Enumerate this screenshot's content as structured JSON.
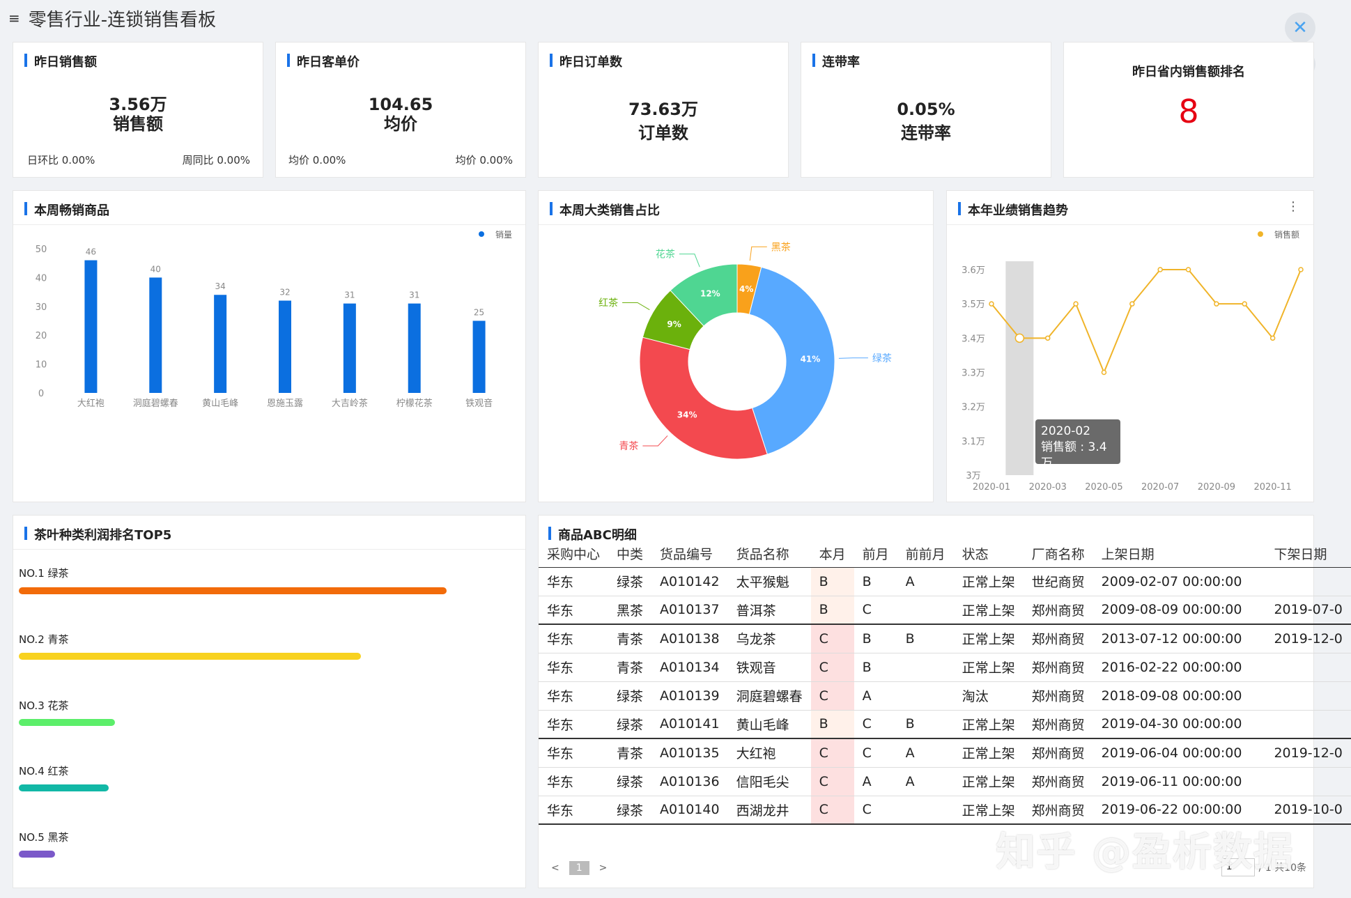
{
  "page": {
    "title": "零售行业-连锁销售看板"
  },
  "kpis": [
    {
      "title": "昨日销售额",
      "main": "3.56万",
      "sub": "销售额",
      "left": "日环比 0.00%",
      "right": "周同比 0.00%"
    },
    {
      "title": "昨日客单价",
      "main": "104.65",
      "sub": "均价",
      "left": "均价 0.00%",
      "right": "均价 0.00%"
    },
    {
      "title": "昨日订单数",
      "main": "73.63万",
      "sub": "订单数"
    },
    {
      "title": "连带率",
      "main": "0.05%",
      "sub": "连带率"
    }
  ],
  "rank": {
    "title": "昨日省内销售额排名",
    "value": "8"
  },
  "bestsellers": {
    "title": "本周畅销商品",
    "legend": "销量",
    "chart_data": {
      "type": "bar",
      "categories": [
        "大红袍",
        "洞庭碧螺春",
        "黄山毛峰",
        "恩施玉露",
        "大吉岭茶",
        "柠檬花茶",
        "铁观音"
      ],
      "values": [
        46,
        40,
        34,
        32,
        31,
        31,
        25
      ],
      "yticks": [
        "0",
        "10",
        "20",
        "30",
        "40",
        "50"
      ],
      "ylim": [
        0,
        50
      ],
      "color": "#0b6fe0"
    }
  },
  "category_share": {
    "title": "本周大类销售占比",
    "chart_data": {
      "type": "pie",
      "slices": [
        {
          "name": "黑茶",
          "label": "4%",
          "value": 4,
          "color": "#f9a11b"
        },
        {
          "name": "绿茶",
          "label": "41%",
          "value": 41,
          "color": "#58a9ff"
        },
        {
          "name": "青茶",
          "label": "34%",
          "value": 34,
          "color": "#f3494f"
        },
        {
          "name": "红茶",
          "label": "9%",
          "value": 9,
          "color": "#6bb10c"
        },
        {
          "name": "花茶",
          "label": "12%",
          "value": 12,
          "color": "#4fd692"
        }
      ]
    }
  },
  "trend": {
    "title": "本年业绩销售趋势",
    "legend": "销售额",
    "more_icon": "⋮",
    "tooltip": {
      "period": "2020-02",
      "text": "销售额 : 3.4万"
    },
    "chart_data": {
      "type": "line",
      "x": [
        "2020-01",
        "2020-02",
        "2020-03",
        "2020-04",
        "2020-05",
        "2020-06",
        "2020-07",
        "2020-08",
        "2020-09",
        "2020-10",
        "2020-11",
        "2020-12"
      ],
      "xticks": [
        "2020-01",
        "2020-03",
        "2020-05",
        "2020-07",
        "2020-09",
        "2020-11"
      ],
      "y": [
        3.5,
        3.4,
        3.4,
        3.5,
        3.3,
        3.5,
        3.6,
        3.6,
        3.5,
        3.5,
        3.4,
        3.6
      ],
      "yticks": [
        "3万",
        "3.1万",
        "3.2万",
        "3.3万",
        "3.4万",
        "3.5万",
        "3.6万"
      ],
      "ylim": [
        3.0,
        3.6
      ],
      "unit": "万",
      "highlight_index": 1,
      "color": "#f0b429"
    }
  },
  "top5": {
    "title": "茶叶种类利润排名TOP5",
    "items": [
      {
        "label": "NO.1 绿茶",
        "value": 100,
        "color": "#f26b0a"
      },
      {
        "label": "NO.2 青茶",
        "value": 80,
        "color": "#f8d21f"
      },
      {
        "label": "NO.3 花茶",
        "value": 22.5,
        "color": "#5cee6a"
      },
      {
        "label": "NO.4 红茶",
        "value": 21,
        "color": "#12b8a6"
      },
      {
        "label": "NO.5 黑茶",
        "value": 8.5,
        "color": "#7b59c9"
      }
    ]
  },
  "abc": {
    "title": "商品ABC明细",
    "columns": [
      "采购中心",
      "中类",
      "货品编号",
      "货品名称",
      "本月",
      "前月",
      "前前月",
      "状态",
      "厂商名称",
      "上架日期",
      "下架日期"
    ],
    "rows": [
      [
        "华东",
        "绿茶",
        "A010142",
        "太平猴魁",
        "B",
        "B",
        "A",
        "正常上架",
        "世纪商贸",
        "2009-02-07 00:00:00",
        ""
      ],
      [
        "华东",
        "黑茶",
        "A010137",
        "普洱茶",
        "B",
        "C",
        "",
        "正常上架",
        "郑州商贸",
        "2009-08-09 00:00:00",
        "2019-07-0"
      ],
      [
        "华东",
        "青茶",
        "A010138",
        "乌龙茶",
        "C",
        "B",
        "B",
        "正常上架",
        "郑州商贸",
        "2013-07-12 00:00:00",
        "2019-12-0"
      ],
      [
        "华东",
        "青茶",
        "A010134",
        "铁观音",
        "C",
        "B",
        "",
        "正常上架",
        "郑州商贸",
        "2016-02-22 00:00:00",
        ""
      ],
      [
        "华东",
        "绿茶",
        "A010139",
        "洞庭碧螺春",
        "C",
        "A",
        "",
        "淘汰",
        "郑州商贸",
        "2018-09-08 00:00:00",
        ""
      ],
      [
        "华东",
        "绿茶",
        "A010141",
        "黄山毛峰",
        "B",
        "C",
        "B",
        "正常上架",
        "郑州商贸",
        "2019-04-30 00:00:00",
        ""
      ],
      [
        "华东",
        "青茶",
        "A010135",
        "大红袍",
        "C",
        "C",
        "A",
        "正常上架",
        "郑州商贸",
        "2019-06-04 00:00:00",
        "2019-12-0"
      ],
      [
        "华东",
        "绿茶",
        "A010136",
        "信阳毛尖",
        "C",
        "A",
        "A",
        "正常上架",
        "郑州商贸",
        "2019-06-11 00:00:00",
        ""
      ],
      [
        "华东",
        "绿茶",
        "A010140",
        "西湖龙井",
        "C",
        "C",
        "",
        "正常上架",
        "郑州商贸",
        "2019-06-22 00:00:00",
        "2019-10-0"
      ]
    ],
    "pager": {
      "prev": "<",
      "current": "1",
      "next": ">",
      "page_input": "1",
      "summary": "/ 1 共10条"
    }
  },
  "watermark": "知乎 @盈析数据",
  "buttons": {
    "close_icon": "✕",
    "home_icon": "⌂"
  }
}
